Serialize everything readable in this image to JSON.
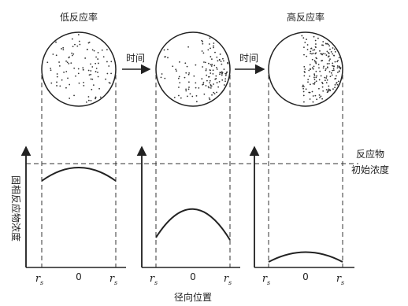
{
  "stages": [
    {
      "label": "低反应率"
    },
    {
      "label": null
    },
    {
      "label": "高反应率"
    }
  ],
  "arrows": [
    {
      "label": "时间"
    },
    {
      "label": "时间"
    }
  ],
  "y_axis_label": "固相反应物浓度",
  "x_axis_label": "径向位置",
  "initial_line_label": [
    "反应物",
    "初始浓度"
  ],
  "radius_symbol": {
    "main": "r",
    "sub": "s"
  },
  "center_label": "0"
}
